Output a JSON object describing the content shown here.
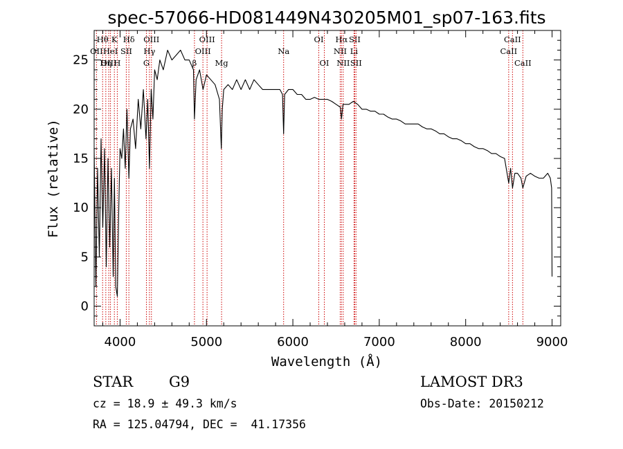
{
  "chart_data": {
    "type": "line",
    "title": "spec-57066-HD081449N430205M01_sp07-163.fits",
    "xlabel": "Wavelength (Å)",
    "ylabel": "Flux (relative)",
    "xlim": [
      3700,
      9100
    ],
    "ylim": [
      -2,
      28
    ],
    "xticks": [
      4000,
      5000,
      6000,
      7000,
      8000,
      9000
    ],
    "yticks": [
      0,
      5,
      10,
      15,
      20,
      25
    ],
    "series": [
      {
        "name": "flux",
        "x": [
          3700,
          3720,
          3740,
          3760,
          3780,
          3800,
          3820,
          3840,
          3860,
          3880,
          3900,
          3920,
          3935,
          3950,
          3968,
          3985,
          4000,
          4020,
          4040,
          4060,
          4080,
          4102,
          4120,
          4150,
          4180,
          4210,
          4240,
          4270,
          4300,
          4320,
          4340,
          4360,
          4380,
          4400,
          4430,
          4460,
          4500,
          4550,
          4600,
          4650,
          4700,
          4750,
          4800,
          4850,
          4861,
          4880,
          4920,
          4960,
          5000,
          5050,
          5100,
          5150,
          5172,
          5183,
          5200,
          5250,
          5300,
          5350,
          5400,
          5450,
          5500,
          5550,
          5600,
          5650,
          5700,
          5750,
          5800,
          5850,
          5880,
          5893,
          5905,
          5950,
          6000,
          6050,
          6100,
          6150,
          6200,
          6250,
          6300,
          6350,
          6400,
          6450,
          6500,
          6550,
          6563,
          6580,
          6620,
          6650,
          6700,
          6750,
          6800,
          6850,
          6900,
          6950,
          7000,
          7050,
          7100,
          7150,
          7200,
          7250,
          7300,
          7350,
          7400,
          7450,
          7500,
          7550,
          7600,
          7650,
          7700,
          7750,
          7800,
          7850,
          7900,
          7950,
          8000,
          8050,
          8100,
          8150,
          8200,
          8250,
          8300,
          8350,
          8400,
          8450,
          8498,
          8520,
          8542,
          8570,
          8600,
          8640,
          8662,
          8700,
          8750,
          8800,
          8850,
          8900,
          8950,
          8980,
          8995,
          9000
        ],
        "y": [
          16,
          2,
          14,
          5,
          17,
          8,
          16,
          4,
          15,
          6,
          14,
          3,
          13,
          2,
          1,
          10,
          16,
          15,
          18,
          14,
          20,
          13,
          18,
          19,
          16,
          21,
          18,
          22,
          17,
          21,
          14,
          22,
          19,
          24,
          23,
          25,
          24,
          26,
          25,
          25.5,
          26,
          25,
          25,
          24,
          19,
          23,
          24,
          22,
          23.5,
          23,
          22.5,
          21,
          16,
          20,
          22,
          22.5,
          22,
          23,
          22,
          23,
          22,
          23,
          22.5,
          22,
          22,
          22,
          22,
          22,
          21.5,
          17.5,
          21.5,
          22,
          22,
          21.5,
          21.5,
          21,
          21,
          21.2,
          21,
          21,
          21,
          20.8,
          20.5,
          20.2,
          19,
          20.5,
          20.5,
          20.5,
          20.8,
          20.5,
          20,
          20,
          19.8,
          19.8,
          19.5,
          19.5,
          19.2,
          19,
          19,
          18.8,
          18.5,
          18.5,
          18.5,
          18.5,
          18.2,
          18,
          18,
          17.8,
          17.5,
          17.5,
          17.2,
          17,
          17,
          16.8,
          16.5,
          16.5,
          16.2,
          16,
          16,
          15.8,
          15.5,
          15.5,
          15.2,
          15,
          12.5,
          14,
          12,
          13.5,
          13.5,
          13,
          12,
          13.2,
          13.5,
          13.2,
          13,
          13,
          13.5,
          13,
          12,
          3
        ]
      }
    ],
    "lines": [
      {
        "name": "Hθ",
        "x": 3798,
        "row": 1
      },
      {
        "name": "OII",
        "x": 3727,
        "row": 2
      },
      {
        "name": "OIII",
        "x": 3869,
        "row": 3
      },
      {
        "name": "HeI",
        "x": 3889,
        "row": 2
      },
      {
        "name": "Hη",
        "x": 3835,
        "row": 3
      },
      {
        "name": "K",
        "x": 3934,
        "row": 1
      },
      {
        "name": "SII",
        "x": 4072,
        "row": 2
      },
      {
        "name": "H",
        "x": 3968,
        "row": 3
      },
      {
        "name": "Hδ",
        "x": 4102,
        "row": 1
      },
      {
        "name": "OIII",
        "x": 4363,
        "row": 1
      },
      {
        "name": "Hγ",
        "x": 4340,
        "row": 2
      },
      {
        "name": "G",
        "x": 4305,
        "row": 3
      },
      {
        "name": "OIII",
        "x": 5007,
        "row": 1
      },
      {
        "name": "OIII",
        "x": 4959,
        "row": 2
      },
      {
        "name": "β",
        "x": 4861,
        "row": 3
      },
      {
        "name": "Mg",
        "x": 5175,
        "row": 3
      },
      {
        "name": "Na",
        "x": 5893,
        "row": 2
      },
      {
        "name": "OI",
        "x": 6300,
        "row": 1
      },
      {
        "name": "OI",
        "x": 6364,
        "row": 3
      },
      {
        "name": "Hα",
        "x": 6563,
        "row": 1
      },
      {
        "name": "NII",
        "x": 6548,
        "row": 2
      },
      {
        "name": "NII",
        "x": 6583,
        "row": 3
      },
      {
        "name": "SII",
        "x": 6716,
        "row": 1
      },
      {
        "name": "Li",
        "x": 6708,
        "row": 2
      },
      {
        "name": "SII",
        "x": 6731,
        "row": 3
      },
      {
        "name": "CaII",
        "x": 8542,
        "row": 1
      },
      {
        "name": "CaII",
        "x": 8498,
        "row": 2
      },
      {
        "name": "CaII",
        "x": 8662,
        "row": 3
      }
    ],
    "colors": {
      "spectrum": "#000000",
      "line_markers": "#cc0000",
      "axes": "#000000"
    }
  },
  "info": {
    "class": "STAR",
    "subclass": "G9",
    "survey": "LAMOST DR3",
    "cz": "cz = 18.9 ± 49.3 km/s",
    "obs_date": "Obs-Date: 20150212",
    "coords": "RA = 125.04794, DEC =  41.17356"
  }
}
